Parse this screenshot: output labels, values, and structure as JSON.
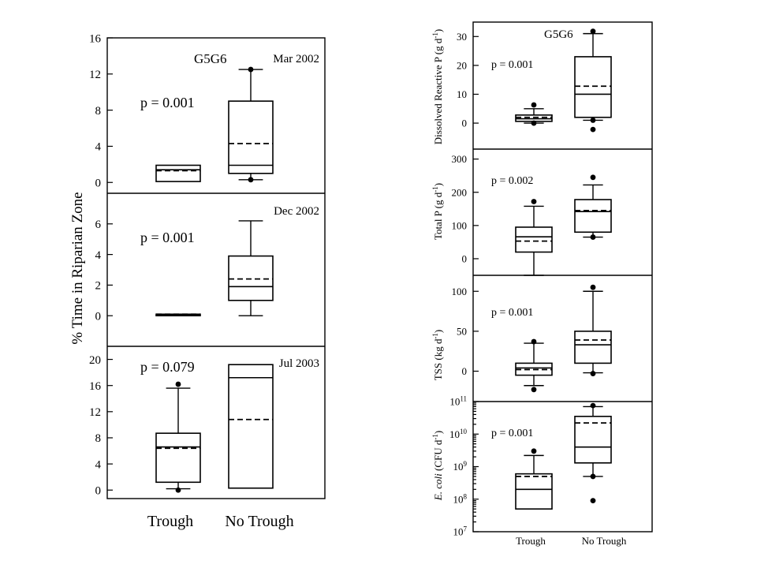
{
  "left_panel": {
    "site_label": "G5G6",
    "y_axis_label": "% Time in Riparian Zone",
    "categories": [
      "Trough",
      "No Trough"
    ],
    "subplots": [
      {
        "date": "Mar 2002",
        "p_value": "p = 0.001",
        "ticks": [
          "0",
          "4",
          "8",
          "12",
          "16"
        ]
      },
      {
        "date": "Dec 2002",
        "p_value": "p = 0.001",
        "ticks": [
          "0",
          "2",
          "4",
          "6"
        ]
      },
      {
        "date": "Jul 2003",
        "p_value": "p = 0.079",
        "ticks": [
          "0",
          "4",
          "8",
          "12",
          "16",
          "20"
        ]
      }
    ]
  },
  "right_panel": {
    "site_label": "G5G6",
    "categories": [
      "Trough",
      "No Trough"
    ],
    "subplots": [
      {
        "ylabel_main": "Dissolved Reactive P (g d",
        "ylabel_sup": "-1",
        "ylabel_tail": ")",
        "p_value": "p = 0.001",
        "ticks": [
          "0",
          "10",
          "20",
          "30"
        ]
      },
      {
        "ylabel_main": "Total P (g d",
        "ylabel_sup": "-1",
        "ylabel_tail": ")",
        "p_value": "p = 0.002",
        "ticks": [
          "0",
          "100",
          "200",
          "300"
        ]
      },
      {
        "ylabel_main": "TSS (kg d",
        "ylabel_sup": "-1",
        "ylabel_tail": ")",
        "p_value": "p = 0.001",
        "ticks": [
          "0",
          "50",
          "100"
        ]
      },
      {
        "ylabel_italic": "E. coli",
        "ylabel_main": " (CFU d",
        "ylabel_sup": "-1",
        "ylabel_tail": ")",
        "p_value": "p = 0.001",
        "ticks": [
          "7",
          "8",
          "9",
          "10",
          "11"
        ],
        "tick_base": "10"
      }
    ]
  },
  "chart_data": [
    {
      "type": "box",
      "panel": "Mar 2002",
      "ylabel": "% Time in Riparian Zone",
      "ylim": [
        -1.2,
        16
      ],
      "categories": [
        "Trough",
        "No Trough"
      ],
      "boxes": [
        {
          "q1": 0.1,
          "median": 1.4,
          "q3": 1.9,
          "mean": 1.3,
          "whisker_low": 0.1,
          "whisker_high": 1.9,
          "outliers": []
        },
        {
          "q1": 1.0,
          "median": 1.9,
          "q3": 9.0,
          "mean": 4.3,
          "whisker_low": 0.3,
          "whisker_high": 12.5,
          "outliers": [
            0.3,
            12.5
          ]
        }
      ]
    },
    {
      "type": "box",
      "panel": "Dec 2002",
      "ylabel": "% Time in Riparian Zone",
      "ylim": [
        -2,
        8
      ],
      "categories": [
        "Trough",
        "No Trough"
      ],
      "boxes": [
        {
          "q1": 0.0,
          "median": 0.05,
          "q3": 0.1,
          "mean": 0.1,
          "whisker_low": 0.0,
          "whisker_high": 0.1,
          "outliers": []
        },
        {
          "q1": 1.0,
          "median": 1.9,
          "q3": 3.9,
          "mean": 2.4,
          "whisker_low": 0.0,
          "whisker_high": 6.2,
          "outliers": []
        }
      ]
    },
    {
      "type": "box",
      "panel": "Jul 2003",
      "ylabel": "% Time in Riparian Zone",
      "ylim": [
        -1.3,
        22
      ],
      "categories": [
        "Trough",
        "No Trough"
      ],
      "boxes": [
        {
          "q1": 1.2,
          "median": 6.6,
          "q3": 8.7,
          "mean": 6.4,
          "whisker_low": 0.2,
          "whisker_high": 15.6,
          "outliers": [
            0.0,
            16.2
          ]
        },
        {
          "q1": 0.3,
          "median": 17.2,
          "q3": 19.2,
          "mean": 10.8,
          "whisker_low": 0.3,
          "whisker_high": 19.2,
          "outliers": []
        }
      ]
    },
    {
      "type": "box",
      "panel": "Dissolved Reactive P",
      "ylabel": "Dissolved Reactive P (g d-1)",
      "ylim": [
        -9,
        35
      ],
      "categories": [
        "Trough",
        "No Trough"
      ],
      "boxes": [
        {
          "q1": 0.6,
          "median": 1.5,
          "q3": 2.8,
          "mean": 2.0,
          "whisker_low": 0.0,
          "whisker_high": 5.0,
          "outliers": [
            0.0,
            6.3
          ]
        },
        {
          "q1": 2.0,
          "median": 10.0,
          "q3": 23.0,
          "mean": 12.8,
          "whisker_low": 1.0,
          "whisker_high": 31.0,
          "outliers": [
            1.0,
            -2.2,
            31.8
          ]
        }
      ]
    },
    {
      "type": "box",
      "panel": "Total P",
      "ylabel": "Total P (g d-1)",
      "ylim": [
        -50,
        330
      ],
      "categories": [
        "Trough",
        "No Trough"
      ],
      "boxes": [
        {
          "q1": 20,
          "median": 66,
          "q3": 95,
          "mean": 53,
          "whisker_low": -50,
          "whisker_high": 158,
          "outliers": [
            172
          ]
        },
        {
          "q1": 80,
          "median": 142,
          "q3": 178,
          "mean": 145,
          "whisker_low": 65,
          "whisker_high": 222,
          "outliers": [
            65,
            245
          ]
        }
      ]
    },
    {
      "type": "box",
      "panel": "TSS",
      "ylabel": "TSS (kg d-1)",
      "ylim": [
        -38,
        120
      ],
      "categories": [
        "Trough",
        "No Trough"
      ],
      "boxes": [
        {
          "q1": -5,
          "median": 4,
          "q3": 10,
          "mean": 2,
          "whisker_low": -18,
          "whisker_high": 35,
          "outliers": [
            -23,
            37
          ]
        },
        {
          "q1": 10,
          "median": 33,
          "q3": 50,
          "mean": 39,
          "whisker_low": -2,
          "whisker_high": 100,
          "outliers": [
            -3,
            105
          ]
        }
      ]
    },
    {
      "type": "box",
      "panel": "E. coli",
      "ylabel": "E. coli (CFU d-1)",
      "yscale": "log",
      "ylim": [
        10000000,
        100000000000
      ],
      "categories": [
        "Trough",
        "No Trough"
      ],
      "boxes": [
        {
          "q1": 50000000,
          "median": 200000000,
          "q3": 600000000,
          "mean": 500000000,
          "whisker_low": 50000000,
          "whisker_high": 2200000000,
          "outliers": [
            3000000000
          ]
        },
        {
          "q1": 1300000000,
          "median": 4000000000,
          "q3": 35000000000,
          "mean": 22000000000,
          "whisker_low": 500000000,
          "whisker_high": 70000000000,
          "outliers": [
            500000000,
            90000000,
            75000000000
          ]
        }
      ]
    }
  ]
}
